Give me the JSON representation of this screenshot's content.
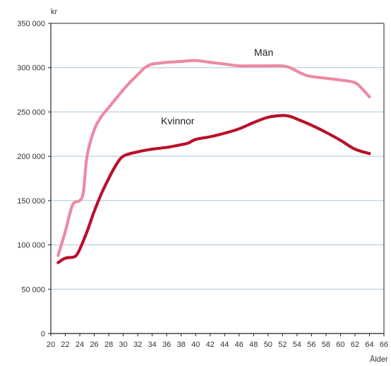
{
  "chart_data": {
    "type": "line",
    "title": "",
    "ylabel": "kr",
    "xlabel": "Ålder",
    "xlim": [
      20,
      66
    ],
    "ylim": [
      0,
      350000
    ],
    "x_ticks": [
      20,
      22,
      24,
      26,
      28,
      30,
      32,
      34,
      36,
      38,
      40,
      42,
      44,
      46,
      48,
      50,
      52,
      54,
      56,
      58,
      60,
      62,
      64,
      66
    ],
    "y_ticks": [
      0,
      50000,
      100000,
      150000,
      200000,
      250000,
      300000,
      350000
    ],
    "y_tick_labels": [
      "0",
      "50 000",
      "100 000",
      "150 000",
      "200 000",
      "250 000",
      "300 000",
      "350 000"
    ],
    "grid": "horizontal",
    "series": [
      {
        "name": "Män",
        "color": "#ec8aa3",
        "x": [
          21,
          22,
          23,
          24,
          24.5,
          25,
          26,
          27,
          28,
          29,
          30,
          31,
          32,
          33,
          34,
          35,
          36,
          38,
          40,
          42,
          44,
          46,
          48,
          50,
          52,
          53,
          54,
          55,
          56,
          58,
          60,
          62,
          63,
          64
        ],
        "y": [
          88000,
          115000,
          145000,
          150000,
          160000,
          200000,
          230000,
          245000,
          255000,
          265000,
          275000,
          284000,
          292000,
          300000,
          304000,
          305000,
          306000,
          307000,
          308000,
          306000,
          304000,
          302000,
          302000,
          302000,
          302000,
          300000,
          296000,
          292000,
          290000,
          288000,
          286000,
          283000,
          276000,
          267000
        ]
      },
      {
        "name": "Kvinnor",
        "color": "#b8102c",
        "x": [
          21,
          22,
          23,
          23.5,
          24,
          25,
          26,
          27,
          28,
          29,
          30,
          32,
          34,
          36,
          38,
          39,
          40,
          42,
          44,
          46,
          48,
          50,
          52,
          53,
          54,
          56,
          58,
          60,
          62,
          64
        ],
        "y": [
          80000,
          85000,
          86000,
          88000,
          95000,
          115000,
          138000,
          158000,
          175000,
          190000,
          200000,
          205000,
          208000,
          210000,
          213000,
          215000,
          219000,
          222000,
          226000,
          231000,
          238000,
          244000,
          246000,
          245000,
          242000,
          235000,
          227000,
          218000,
          208000,
          203000
        ]
      }
    ]
  }
}
